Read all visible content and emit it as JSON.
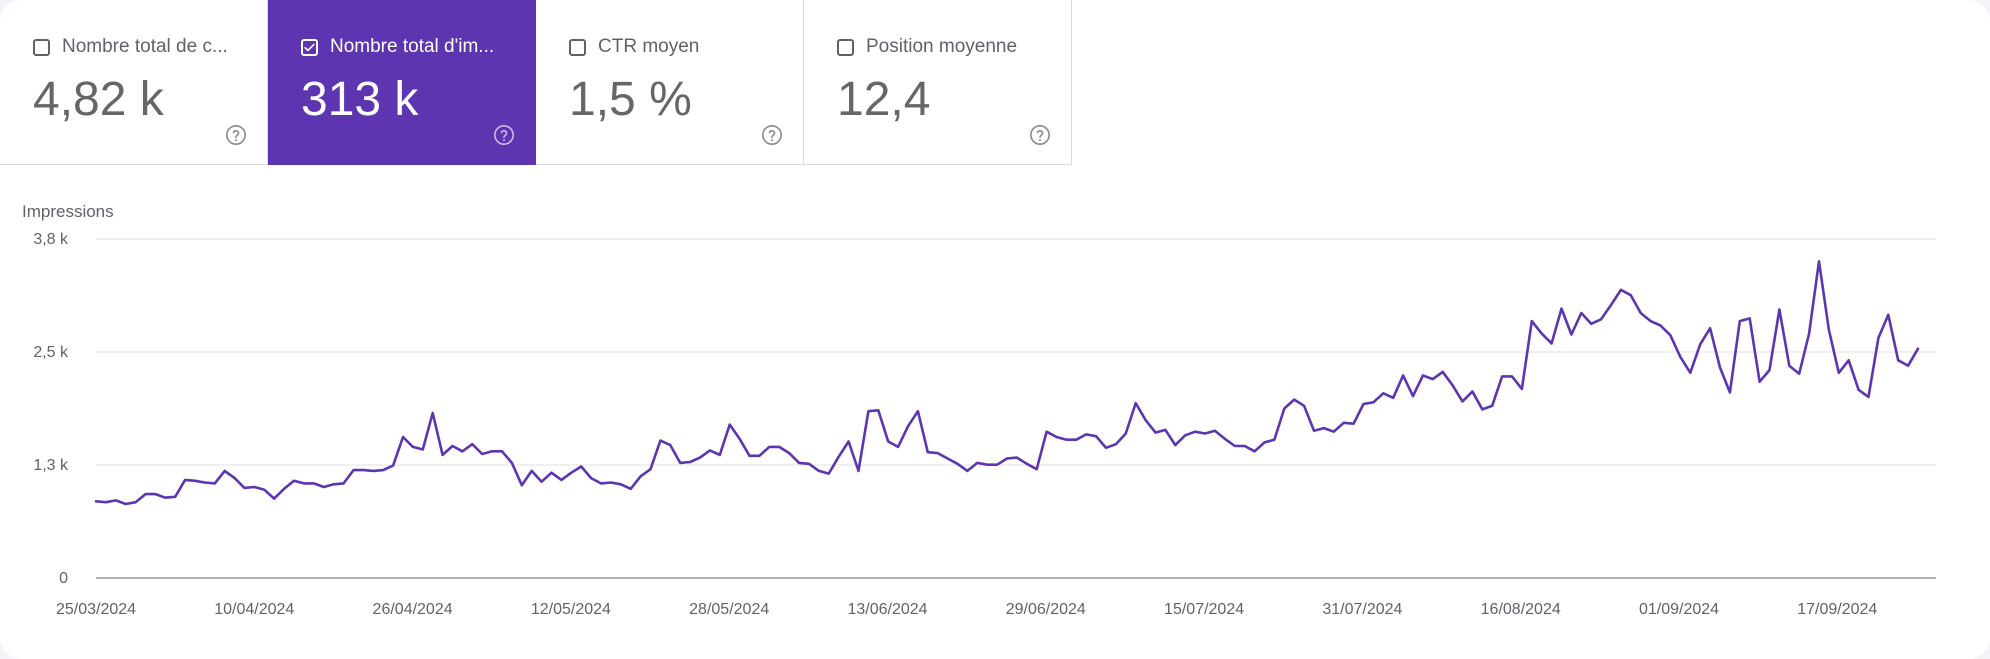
{
  "metrics": [
    {
      "label": "Nombre total de c...",
      "value": "4,82 k",
      "checked": false
    },
    {
      "label": "Nombre total d'im...",
      "value": "313 k",
      "checked": true
    },
    {
      "label": "CTR moyen",
      "value": "1,5 %",
      "checked": false
    },
    {
      "label": "Position moyenne",
      "value": "12,4",
      "checked": false
    }
  ],
  "icons": {
    "help": "help-circle-icon",
    "check": "check-icon"
  },
  "colors": {
    "accent": "#5e35b1",
    "line": "#5e35b1",
    "grid": "#e0e0e0",
    "text": "#5f6368"
  },
  "chart_data": {
    "type": "line",
    "title": "Impressions",
    "ylabel": "Impressions",
    "ylim": [
      0,
      3800
    ],
    "yticks": [
      {
        "value": 0,
        "label": "0"
      },
      {
        "value": 1267,
        "label": "1,3 k"
      },
      {
        "value": 2533,
        "label": "2,5 k"
      },
      {
        "value": 3800,
        "label": "3,8 k"
      }
    ],
    "x_labels": [
      "25/03/2024",
      "10/04/2024",
      "26/04/2024",
      "12/05/2024",
      "28/05/2024",
      "13/06/2024",
      "29/06/2024",
      "15/07/2024",
      "31/07/2024",
      "16/08/2024",
      "01/09/2024",
      "17/09/2024"
    ],
    "grid": true,
    "series": [
      {
        "name": "Impressions",
        "values": [
          860,
          850,
          870,
          830,
          850,
          940,
          940,
          900,
          910,
          1100,
          1090,
          1070,
          1060,
          1200,
          1120,
          1010,
          1020,
          990,
          890,
          1000,
          1090,
          1060,
          1060,
          1020,
          1050,
          1060,
          1210,
          1210,
          1200,
          1210,
          1260,
          1580,
          1470,
          1440,
          1850,
          1380,
          1480,
          1420,
          1500,
          1390,
          1420,
          1420,
          1290,
          1040,
          1200,
          1080,
          1180,
          1100,
          1180,
          1250,
          1120,
          1060,
          1070,
          1050,
          1000,
          1140,
          1220,
          1540,
          1490,
          1290,
          1300,
          1350,
          1430,
          1380,
          1720,
          1560,
          1370,
          1370,
          1470,
          1470,
          1400,
          1290,
          1280,
          1200,
          1170,
          1360,
          1530,
          1200,
          1870,
          1880,
          1530,
          1470,
          1700,
          1870,
          1410,
          1400,
          1340,
          1280,
          1200,
          1290,
          1270,
          1270,
          1340,
          1350,
          1280,
          1220,
          1640,
          1580,
          1550,
          1550,
          1610,
          1590,
          1460,
          1500,
          1620,
          1960,
          1770,
          1630,
          1660,
          1490,
          1600,
          1640,
          1620,
          1650,
          1560,
          1480,
          1480,
          1420,
          1520,
          1550,
          1900,
          2000,
          1930,
          1650,
          1680,
          1640,
          1740,
          1730,
          1950,
          1970,
          2070,
          2020,
          2270,
          2040,
          2270,
          2230,
          2310,
          2160,
          1980,
          2090,
          1890,
          1930,
          2260,
          2260,
          2120,
          2880,
          2740,
          2630,
          3020,
          2730,
          2970,
          2850,
          2900,
          3060,
          3230,
          3170,
          2970,
          2880,
          2830,
          2720,
          2480,
          2300,
          2620,
          2800,
          2360,
          2080,
          2880,
          2910,
          2200,
          2330,
          3010,
          2380,
          2290,
          2740,
          3550,
          2780,
          2300,
          2440,
          2110,
          2030,
          2690,
          2950,
          2440,
          2380,
          2570
        ]
      }
    ]
  }
}
